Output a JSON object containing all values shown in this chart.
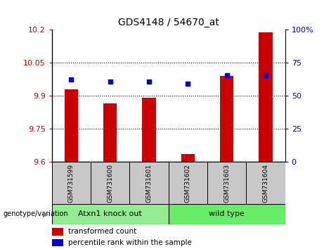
{
  "title": "GDS4148 / 54670_at",
  "samples": [
    "GSM731599",
    "GSM731600",
    "GSM731601",
    "GSM731602",
    "GSM731603",
    "GSM731604"
  ],
  "red_values": [
    9.93,
    9.865,
    9.89,
    9.635,
    9.99,
    10.19
  ],
  "blue_values": [
    9.975,
    9.965,
    9.965,
    9.955,
    9.995,
    9.995
  ],
  "ylim_left": [
    9.6,
    10.2
  ],
  "ylim_right": [
    0,
    100
  ],
  "yticks_left": [
    9.6,
    9.75,
    9.9,
    10.05,
    10.2
  ],
  "yticks_right": [
    0,
    25,
    50,
    75,
    100
  ],
  "ytick_labels_left": [
    "9.6",
    "9.75",
    "9.9",
    "10.05",
    "10.2"
  ],
  "ytick_labels_right": [
    "0",
    "25",
    "50",
    "75",
    "100%"
  ],
  "grid_yticks": [
    9.75,
    9.9,
    10.05
  ],
  "groups": [
    {
      "label": "Atxn1 knock out",
      "indices": [
        0,
        1,
        2
      ]
    },
    {
      "label": "wild type",
      "indices": [
        3,
        4,
        5
      ]
    }
  ],
  "group_colors": [
    "#90EE90",
    "#66EE66"
  ],
  "group_row_color": "#C8C8C8",
  "bar_color": "#CC0000",
  "dot_color": "#0000CC",
  "legend_red_label": "transformed count",
  "legend_blue_label": "percentile rank within the sample",
  "genotype_label": "genotype/variation",
  "background_color": "#FFFFFF",
  "bar_width": 0.35
}
